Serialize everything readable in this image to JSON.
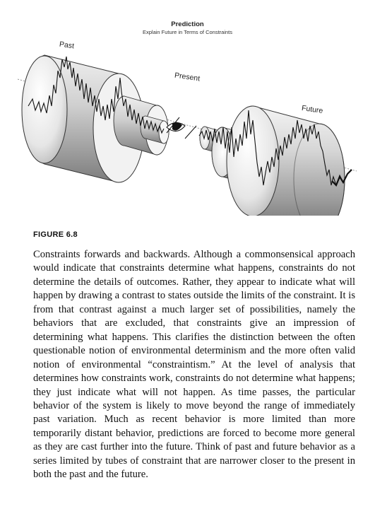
{
  "figure": {
    "title": "Prediction",
    "subtitle": "Explain Future in Terms of Constraints",
    "labels": {
      "past": "Past",
      "present": "Present",
      "future": "Future"
    }
  },
  "caption": {
    "label": "FIGURE 6.8",
    "text": "Constraints forwards and backwards. Although a commonsensical approach would indicate that constraints determine what happens, con­straints do not determine the details of outcomes. Rather, they appear to indicate what will happen by drawing a contrast to states outside the limits of the constraint. It is from that contrast against a much larger set of possibilities, namely the behaviors that are excluded, that constraints give an impression of determining what happens. This clarifies the dis­tinction between the often questionable notion of environmental deter­minism and the more often valid notion of environmental “constrain­tism.” At the level of analysis that determines how constraints work, constraints do not determine what happens; they just indicate what will not happen. As time passes, the particular behavior of the system is likely to move beyond the range of immediately past variation. Much as recent behavior is more limited than more temporarily distant behav­ior, predictions are forced to become more general as they are cast fur­ther into the future. Think of past and future behavior as a series lim­ited by tubes of constraint that are narrower closer to the present in both the past and the future."
  }
}
